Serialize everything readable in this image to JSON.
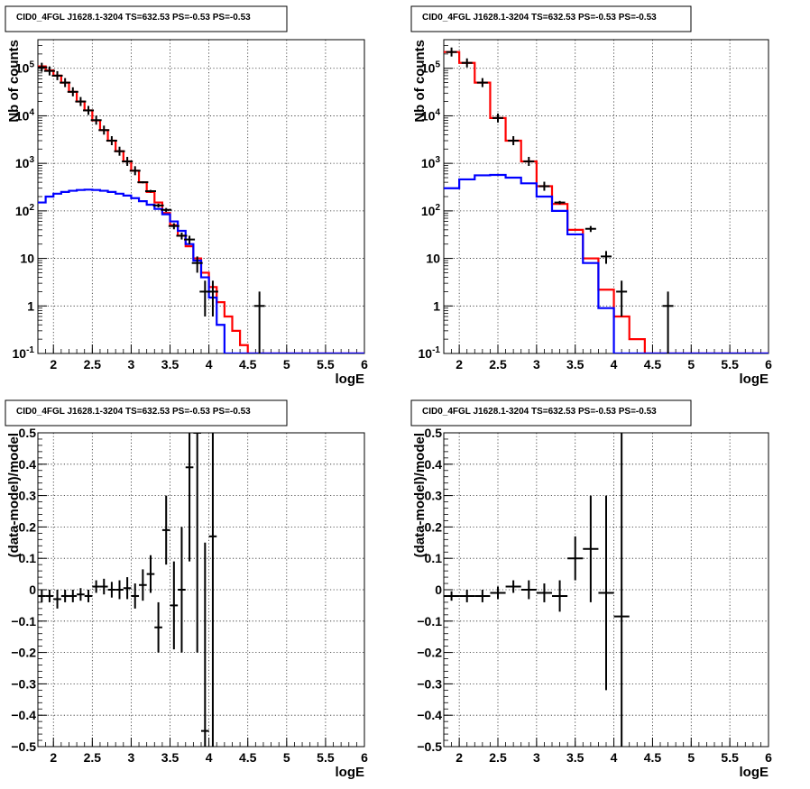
{
  "chart_data": [
    {
      "type": "line",
      "title": "CID0_4FGL J1628.1-3204 TS=632.53 PS=-0.53 PS=-0.53",
      "xlabel": "logE",
      "ylabel": "Nb of counts",
      "xlim": [
        1.8,
        6.0
      ],
      "ylim": [
        0.1,
        400000
      ],
      "yscale": "log",
      "grid": true,
      "x_ticks": [
        "2",
        "2.5",
        "3",
        "3.5",
        "4",
        "4.5",
        "5",
        "5.5",
        "6"
      ],
      "y_ticks": [
        "10^-1",
        "1",
        "10",
        "10^2",
        "10^3",
        "10^4",
        "10^5"
      ],
      "bin_edges": [
        1.8,
        1.9,
        2.0,
        2.1,
        2.2,
        2.3,
        2.4,
        2.5,
        2.6,
        2.7,
        2.8,
        2.9,
        3.0,
        3.1,
        3.2,
        3.3,
        3.4,
        3.5,
        3.6,
        3.7,
        3.8,
        3.9,
        4.0,
        4.1,
        4.2,
        4.3,
        4.4,
        4.5,
        4.6,
        4.7,
        4.8,
        4.9,
        5.0,
        5.1,
        5.2,
        5.3,
        5.4,
        5.5,
        5.6,
        5.7,
        5.8,
        5.9,
        6.0
      ],
      "series": [
        {
          "color": "#ff0000",
          "style": "step",
          "values": [
            110000,
            90000,
            70000,
            50000,
            32000,
            20000,
            13000,
            8000,
            5000,
            3000,
            1800,
            1100,
            700,
            400,
            250,
            150,
            90,
            50,
            30,
            18,
            10,
            5,
            2.5,
            1.2,
            0.6,
            0.3,
            0.15,
            0.1,
            0.1,
            0.1,
            0.1,
            0.1,
            0.1,
            0.1,
            0.1,
            0.1,
            0.1,
            0.1,
            0.1,
            0.1,
            0.1,
            0.1
          ]
        },
        {
          "color": "#0000ff",
          "style": "step",
          "values": [
            150,
            200,
            230,
            250,
            265,
            275,
            280,
            275,
            265,
            250,
            230,
            210,
            185,
            160,
            135,
            110,
            85,
            60,
            38,
            20,
            9,
            4,
            1.5,
            0.4,
            0.1,
            0.1,
            0.1,
            0.1,
            0.1,
            0.1,
            0.1,
            0.1,
            0.1,
            0.1,
            0.1,
            0.1,
            0.1,
            0.1,
            0.1,
            0.1,
            0.1,
            0.1
          ]
        }
      ],
      "data_points": [
        {
          "x": 1.85,
          "y": 105000,
          "yerr_lo": 0,
          "yerr_hi": 0
        },
        {
          "x": 1.95,
          "y": 88000,
          "yerr_lo": 0,
          "yerr_hi": 0
        },
        {
          "x": 2.05,
          "y": 70000,
          "yerr_lo": 0,
          "yerr_hi": 0
        },
        {
          "x": 2.15,
          "y": 50000,
          "yerr_lo": 0,
          "yerr_hi": 0
        },
        {
          "x": 2.25,
          "y": 32000,
          "yerr_lo": 0,
          "yerr_hi": 0
        },
        {
          "x": 2.35,
          "y": 20000,
          "yerr_lo": 0,
          "yerr_hi": 0
        },
        {
          "x": 2.45,
          "y": 13000,
          "yerr_lo": 0,
          "yerr_hi": 0
        },
        {
          "x": 2.55,
          "y": 8100,
          "yerr_lo": 0,
          "yerr_hi": 0
        },
        {
          "x": 2.65,
          "y": 5000,
          "yerr_lo": 0,
          "yerr_hi": 0
        },
        {
          "x": 2.75,
          "y": 3000,
          "yerr_lo": 0,
          "yerr_hi": 0
        },
        {
          "x": 2.85,
          "y": 1800,
          "yerr_lo": 0,
          "yerr_hi": 0
        },
        {
          "x": 2.95,
          "y": 1100,
          "yerr_lo": 0,
          "yerr_hi": 0
        },
        {
          "x": 3.05,
          "y": 700,
          "yerr_lo": 0,
          "yerr_hi": 0
        },
        {
          "x": 3.15,
          "y": 400,
          "yerr_lo": 20,
          "yerr_hi": 20
        },
        {
          "x": 3.25,
          "y": 260,
          "yerr_lo": 16,
          "yerr_hi": 16
        },
        {
          "x": 3.35,
          "y": 130,
          "yerr_lo": 12,
          "yerr_hi": 12
        },
        {
          "x": 3.45,
          "y": 105,
          "yerr_lo": 10,
          "yerr_hi": 10
        },
        {
          "x": 3.55,
          "y": 48,
          "yerr_lo": 7,
          "yerr_hi": 7
        },
        {
          "x": 3.65,
          "y": 30,
          "yerr_lo": 5,
          "yerr_hi": 5
        },
        {
          "x": 3.75,
          "y": 25,
          "yerr_lo": 5,
          "yerr_hi": 5
        },
        {
          "x": 3.85,
          "y": 8,
          "yerr_lo": 3,
          "yerr_hi": 3
        },
        {
          "x": 3.95,
          "y": 2,
          "yerr_lo": 1.4,
          "yerr_hi": 1.4
        },
        {
          "x": 4.05,
          "y": 2,
          "yerr_lo": 1.4,
          "yerr_hi": 1.4
        },
        {
          "x": 4.65,
          "y": 1,
          "yerr_lo": 1,
          "yerr_hi": 1
        }
      ]
    },
    {
      "type": "line",
      "title": "CID0_4FGL J1628.1-3204 TS=632.53 PS=-0.53 PS=-0.53",
      "xlabel": "logE",
      "ylabel": "Nb of counts",
      "xlim": [
        1.8,
        6.0
      ],
      "ylim": [
        0.1,
        400000
      ],
      "yscale": "log",
      "grid": true,
      "x_ticks": [
        "2",
        "2.5",
        "3",
        "3.5",
        "4",
        "4.5",
        "5",
        "5.5",
        "6"
      ],
      "y_ticks": [
        "10^-1",
        "1",
        "10",
        "10^2",
        "10^3",
        "10^4",
        "10^5"
      ],
      "bin_edges": [
        1.8,
        2.0,
        2.2,
        2.4,
        2.6,
        2.8,
        3.0,
        3.2,
        3.4,
        3.6,
        3.8,
        4.0,
        4.2,
        4.4,
        4.6,
        4.8,
        5.0,
        5.2,
        5.4,
        5.6,
        5.8,
        6.0
      ],
      "series": [
        {
          "color": "#ff0000",
          "style": "step",
          "values": [
            220000,
            130000,
            50000,
            9000,
            3000,
            1100,
            330,
            140,
            40,
            10,
            2.2,
            0.6,
            0.2,
            0.1,
            0.1,
            0.1,
            0.1,
            0.1,
            0.1,
            0.1,
            0.1
          ]
        },
        {
          "color": "#0000ff",
          "style": "step",
          "values": [
            300,
            460,
            560,
            570,
            500,
            380,
            200,
            100,
            32,
            8,
            0.9,
            0.1,
            0.1,
            0.1,
            0.1,
            0.1,
            0.1,
            0.1,
            0.1,
            0.1,
            0.1
          ]
        }
      ],
      "data_points": [
        {
          "x": 1.9,
          "y": 220000,
          "yerr_lo": 0,
          "yerr_hi": 0
        },
        {
          "x": 2.1,
          "y": 130000,
          "yerr_lo": 0,
          "yerr_hi": 0
        },
        {
          "x": 2.3,
          "y": 50000,
          "yerr_lo": 0,
          "yerr_hi": 0
        },
        {
          "x": 2.5,
          "y": 9000,
          "yerr_lo": 0,
          "yerr_hi": 0
        },
        {
          "x": 2.7,
          "y": 3000,
          "yerr_lo": 0,
          "yerr_hi": 0
        },
        {
          "x": 2.9,
          "y": 1100,
          "yerr_lo": 0,
          "yerr_hi": 0
        },
        {
          "x": 3.1,
          "y": 330,
          "yerr_lo": 0,
          "yerr_hi": 0
        },
        {
          "x": 3.3,
          "y": 150,
          "yerr_lo": 12,
          "yerr_hi": 12
        },
        {
          "x": 3.7,
          "y": 42,
          "yerr_lo": 6,
          "yerr_hi": 6
        },
        {
          "x": 3.9,
          "y": 11,
          "yerr_lo": 3.3,
          "yerr_hi": 3.3
        },
        {
          "x": 4.1,
          "y": 2,
          "yerr_lo": 1.4,
          "yerr_hi": 1.4
        },
        {
          "x": 4.7,
          "y": 1,
          "yerr_lo": 1,
          "yerr_hi": 1
        }
      ]
    },
    {
      "type": "scatter",
      "title": "CID0_4FGL J1628.1-3204 TS=632.53 PS=-0.53 PS=-0.53",
      "xlabel": "logE",
      "ylabel": "(data-model)/model",
      "xlim": [
        1.8,
        6.0
      ],
      "ylim": [
        -0.5,
        0.5
      ],
      "grid": true,
      "x_ticks": [
        "2",
        "2.5",
        "3",
        "3.5",
        "4",
        "4.5",
        "5",
        "5.5",
        "6"
      ],
      "y_ticks": [
        "-0.5",
        "-0.4",
        "-0.3",
        "-0.2",
        "-0.1",
        "0",
        "0.1",
        "0.2",
        "0.3",
        "0.4",
        "0.5"
      ],
      "data_points": [
        {
          "x": 1.85,
          "y": -0.02,
          "xerr": 0.05,
          "yerr": 0.02
        },
        {
          "x": 1.95,
          "y": -0.02,
          "xerr": 0.05,
          "yerr": 0.02
        },
        {
          "x": 2.05,
          "y": -0.03,
          "xerr": 0.05,
          "yerr": 0.03
        },
        {
          "x": 2.15,
          "y": -0.02,
          "xerr": 0.05,
          "yerr": 0.02
        },
        {
          "x": 2.25,
          "y": -0.02,
          "xerr": 0.05,
          "yerr": 0.02
        },
        {
          "x": 2.35,
          "y": -0.015,
          "xerr": 0.05,
          "yerr": 0.02
        },
        {
          "x": 2.45,
          "y": -0.02,
          "xerr": 0.05,
          "yerr": 0.02
        },
        {
          "x": 2.55,
          "y": 0.01,
          "xerr": 0.05,
          "yerr": 0.02
        },
        {
          "x": 2.65,
          "y": 0.01,
          "xerr": 0.05,
          "yerr": 0.025
        },
        {
          "x": 2.75,
          "y": 0.0,
          "xerr": 0.05,
          "yerr": 0.025
        },
        {
          "x": 2.85,
          "y": 0.0,
          "xerr": 0.05,
          "yerr": 0.03
        },
        {
          "x": 2.95,
          "y": 0.005,
          "xerr": 0.05,
          "yerr": 0.035
        },
        {
          "x": 3.05,
          "y": -0.02,
          "xerr": 0.05,
          "yerr": 0.04
        },
        {
          "x": 3.15,
          "y": 0.015,
          "xerr": 0.05,
          "yerr": 0.05
        },
        {
          "x": 3.25,
          "y": 0.05,
          "xerr": 0.05,
          "yerr": 0.06
        },
        {
          "x": 3.35,
          "y": -0.12,
          "xerr": 0.05,
          "yerr": 0.08
        },
        {
          "x": 3.45,
          "y": 0.19,
          "xerr": 0.05,
          "yerr": 0.11
        },
        {
          "x": 3.55,
          "y": -0.05,
          "xerr": 0.05,
          "yerr": 0.14
        },
        {
          "x": 3.65,
          "y": 0.0,
          "xerr": 0.05,
          "yerr": 0.2
        },
        {
          "x": 3.75,
          "y": 0.39,
          "xerr": 0.05,
          "yerr": 0.3
        },
        {
          "x": 3.85,
          "y": 0.5,
          "xerr": 0.05,
          "yerr": 0.7
        },
        {
          "x": 3.95,
          "y": -0.45,
          "xerr": 0.05,
          "yerr": 0.6
        },
        {
          "x": 4.05,
          "y": 0.17,
          "xerr": 0.05,
          "yerr": 1.0
        }
      ]
    },
    {
      "type": "scatter",
      "title": "CID0_4FGL J1628.1-3204 TS=632.53 PS=-0.53 PS=-0.53",
      "xlabel": "logE",
      "ylabel": "(data-model)/model",
      "xlim": [
        1.8,
        6.0
      ],
      "ylim": [
        -0.5,
        0.5
      ],
      "grid": true,
      "x_ticks": [
        "2",
        "2.5",
        "3",
        "3.5",
        "4",
        "4.5",
        "5",
        "5.5",
        "6"
      ],
      "y_ticks": [
        "-0.5",
        "-0.4",
        "-0.3",
        "-0.2",
        "-0.1",
        "0",
        "0.1",
        "0.2",
        "0.3",
        "0.4",
        "0.5"
      ],
      "data_points": [
        {
          "x": 1.9,
          "y": -0.02,
          "xerr": 0.1,
          "yerr": 0.015
        },
        {
          "x": 2.1,
          "y": -0.02,
          "xerr": 0.1,
          "yerr": 0.02
        },
        {
          "x": 2.3,
          "y": -0.02,
          "xerr": 0.1,
          "yerr": 0.02
        },
        {
          "x": 2.5,
          "y": -0.01,
          "xerr": 0.1,
          "yerr": 0.02
        },
        {
          "x": 2.7,
          "y": 0.01,
          "xerr": 0.1,
          "yerr": 0.02
        },
        {
          "x": 2.9,
          "y": 0.0,
          "xerr": 0.1,
          "yerr": 0.03
        },
        {
          "x": 3.1,
          "y": -0.01,
          "xerr": 0.1,
          "yerr": 0.03
        },
        {
          "x": 3.3,
          "y": -0.02,
          "xerr": 0.1,
          "yerr": 0.05
        },
        {
          "x": 3.5,
          "y": 0.1,
          "xerr": 0.1,
          "yerr": 0.07
        },
        {
          "x": 3.7,
          "y": 0.13,
          "xerr": 0.1,
          "yerr": 0.17
        },
        {
          "x": 3.9,
          "y": -0.01,
          "xerr": 0.1,
          "yerr": 0.31
        },
        {
          "x": 4.1,
          "y": -0.085,
          "xerr": 0.1,
          "yerr": 1.0
        }
      ]
    }
  ]
}
